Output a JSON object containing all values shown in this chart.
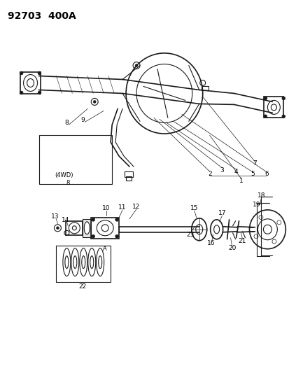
{
  "title": "92703  400A",
  "bg_color": "#ffffff",
  "line_color": "#1a1a1a",
  "title_fontsize": 11,
  "label_fontsize": 6.5,
  "fig_width": 4.14,
  "fig_height": 5.33,
  "dpi": 100
}
